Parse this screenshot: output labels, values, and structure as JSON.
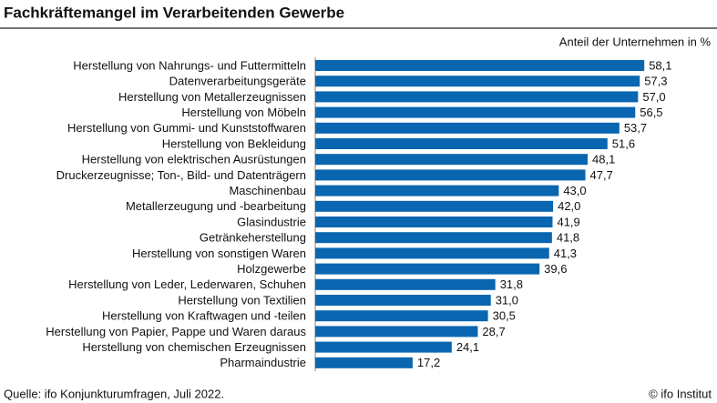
{
  "chart_data": {
    "type": "bar",
    "orientation": "horizontal",
    "title": "Fachkräftemangel im Verarbeitenden Gewerbe",
    "unit_label": "Anteil der Unternehmen in %",
    "source": "Quelle: ifo Konjunkturumfragen, Juli 2022.",
    "copyright": "© ifo Institut",
    "color": "#0a66b0",
    "xlim": [
      0,
      60
    ],
    "categories": [
      "Herstellung von Nahrungs- und Futtermitteln",
      "Datenverarbeitungsgeräte",
      "Herstellung von Metallerzeugnissen",
      "Herstellung von Möbeln",
      "Herstellung von Gummi- und Kunststoffwaren",
      "Herstellung von Bekleidung",
      "Herstellung von elektrischen Ausrüstungen",
      "Druckerzeugnisse; Ton-, Bild- und Datenträgern",
      "Maschinenbau",
      "Metallerzeugung und -bearbeitung",
      "Glasindustrie",
      "Getränkeherstellung",
      "Herstellung von sonstigen Waren",
      "Holzgewerbe",
      "Herstellung von Leder, Lederwaren, Schuhen",
      "Herstellung von Textilien",
      "Herstellung von Kraftwagen und -teilen",
      "Herstellung von Papier, Pappe und Waren daraus",
      "Herstellung von chemischen Erzeugnissen",
      "Pharmaindustrie"
    ],
    "values": [
      58.1,
      57.3,
      57.0,
      56.5,
      53.7,
      51.6,
      48.1,
      47.7,
      43.0,
      42.0,
      41.9,
      41.8,
      41.3,
      39.6,
      31.8,
      31.0,
      30.5,
      28.7,
      24.1,
      17.2
    ],
    "value_labels": [
      "58,1",
      "57,3",
      "57,0",
      "56,5",
      "53,7",
      "51,6",
      "48,1",
      "47,7",
      "43,0",
      "42,0",
      "41,9",
      "41,8",
      "41,3",
      "39,6",
      "31,8",
      "31,0",
      "30,5",
      "28,7",
      "24,1",
      "17,2"
    ]
  }
}
